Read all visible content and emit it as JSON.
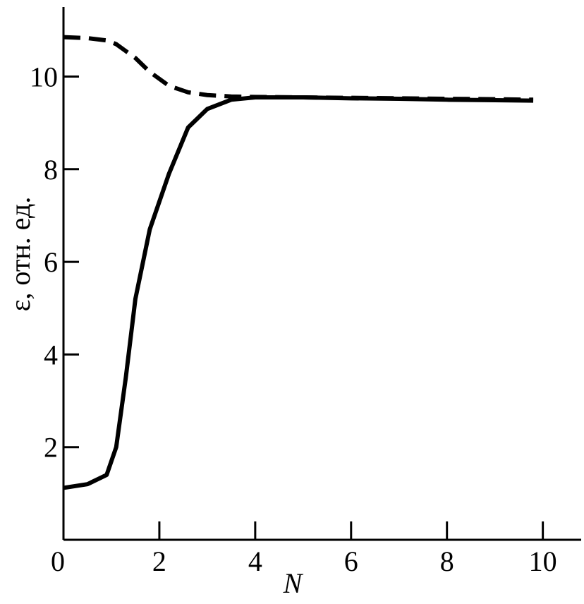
{
  "chart_data": {
    "type": "line",
    "x_label": "N",
    "y_label": "ε, отн. ед.",
    "x": [
      0,
      0.5,
      0.9,
      1.1,
      1.3,
      1.5,
      1.8,
      2.2,
      2.6,
      3.0,
      3.5,
      4,
      5,
      6,
      7,
      8,
      9,
      9.8
    ],
    "series": [
      {
        "color": "#000000",
        "dashed": true,
        "values": [
          10.85,
          10.83,
          10.78,
          10.7,
          10.55,
          10.4,
          10.1,
          9.8,
          9.66,
          9.6,
          9.57,
          9.56,
          9.55,
          9.54,
          9.53,
          9.52,
          9.51,
          9.5
        ]
      },
      {
        "color": "#000000",
        "dashed": false,
        "values": [
          1.12,
          1.2,
          1.4,
          2.0,
          3.5,
          5.2,
          6.7,
          7.9,
          8.9,
          9.3,
          9.5,
          9.55,
          9.55,
          9.53,
          9.52,
          9.5,
          9.49,
          9.48
        ]
      }
    ],
    "xlim": [
      0,
      10.8
    ],
    "ylim": [
      0,
      11.5
    ],
    "xticks": [
      0,
      2,
      4,
      6,
      8,
      10
    ],
    "yticks": [
      2,
      4,
      6,
      8,
      10
    ],
    "grid": false
  }
}
